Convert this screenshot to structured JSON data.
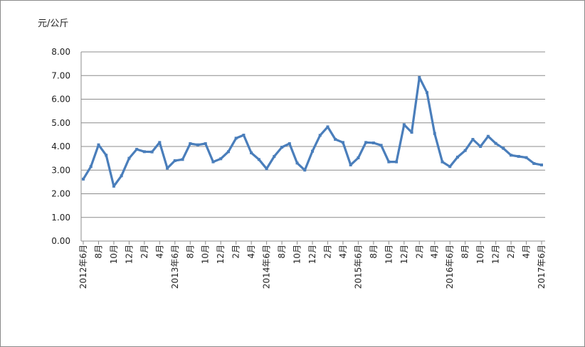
{
  "chart_data": {
    "type": "line",
    "title": "",
    "xlabel": "",
    "ylabel": "元/公斤",
    "ylim": [
      0,
      8
    ],
    "yticks": [
      "0.00",
      "1.00",
      "2.00",
      "3.00",
      "4.00",
      "5.00",
      "6.00",
      "7.00",
      "8.00"
    ],
    "grid": "horizontal",
    "legend": "none",
    "line_color": "#4a7ebb",
    "x_labels": [
      "2012年6月",
      "8月",
      "10月",
      "12月",
      "2月",
      "4月",
      "2013年6月",
      "8月",
      "10月",
      "12月",
      "2月",
      "4月",
      "2014年6月",
      "8月",
      "10月",
      "12月",
      "2月",
      "4月",
      "2015年6月",
      "8月",
      "10月",
      "12月",
      "2月",
      "4月",
      "2016年6月",
      "8月",
      "10月",
      "12月",
      "2月",
      "4月",
      "2017年6月"
    ],
    "series": [
      {
        "values": [
          2.62,
          3.15,
          4.07,
          3.63,
          2.32,
          2.76,
          3.5,
          3.88,
          3.78,
          3.77,
          4.17,
          3.08,
          3.4,
          3.45,
          4.12,
          4.07,
          4.12,
          3.35,
          3.48,
          3.78,
          4.35,
          4.48,
          3.73,
          3.45,
          3.06,
          3.58,
          3.97,
          4.12,
          3.3,
          3.0,
          3.8,
          4.47,
          4.83,
          4.3,
          4.17,
          3.22,
          3.52,
          4.17,
          4.15,
          4.05,
          3.35,
          3.35,
          4.92,
          4.6,
          6.92,
          6.28,
          4.55,
          3.35,
          3.15,
          3.55,
          3.83,
          4.3,
          4.0,
          4.43,
          4.13,
          3.92,
          3.63,
          3.58,
          3.53,
          3.28,
          3.22
        ]
      }
    ]
  }
}
